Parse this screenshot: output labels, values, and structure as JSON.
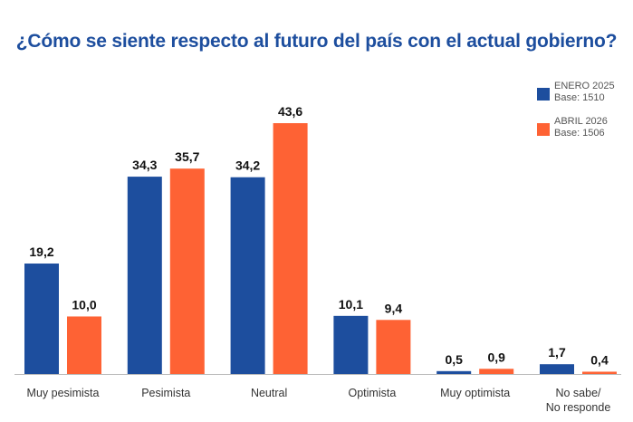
{
  "chart_data": {
    "type": "bar",
    "title": "¿Cómo se siente respecto al futuro del país con el actual gobierno?",
    "categories": [
      "Muy pesimista",
      "Pesimista",
      "Neutral",
      "Optimista",
      "Muy optimista",
      "No sabe/\nNo responde"
    ],
    "series": [
      {
        "name": "ENERO 2025",
        "base": "Base: 1510",
        "color": "#1d4e9e",
        "values": [
          19.2,
          34.3,
          34.2,
          10.1,
          0.5,
          1.7
        ],
        "labels": [
          "19,2",
          "34,3",
          "34,2",
          "10,1",
          "0,5",
          "1,7"
        ]
      },
      {
        "name": "ABRIL 2026",
        "base": "Base: 1506",
        "color": "#fe6234",
        "values": [
          10.0,
          35.7,
          43.6,
          9.4,
          0.9,
          0.4
        ],
        "labels": [
          "10,0",
          "35,7",
          "43,6",
          "9,4",
          "0,9",
          "0,4"
        ]
      }
    ],
    "ylim": [
      0,
      45
    ],
    "grid": false,
    "legend_position": "top-right",
    "xlabel": "",
    "ylabel": ""
  }
}
